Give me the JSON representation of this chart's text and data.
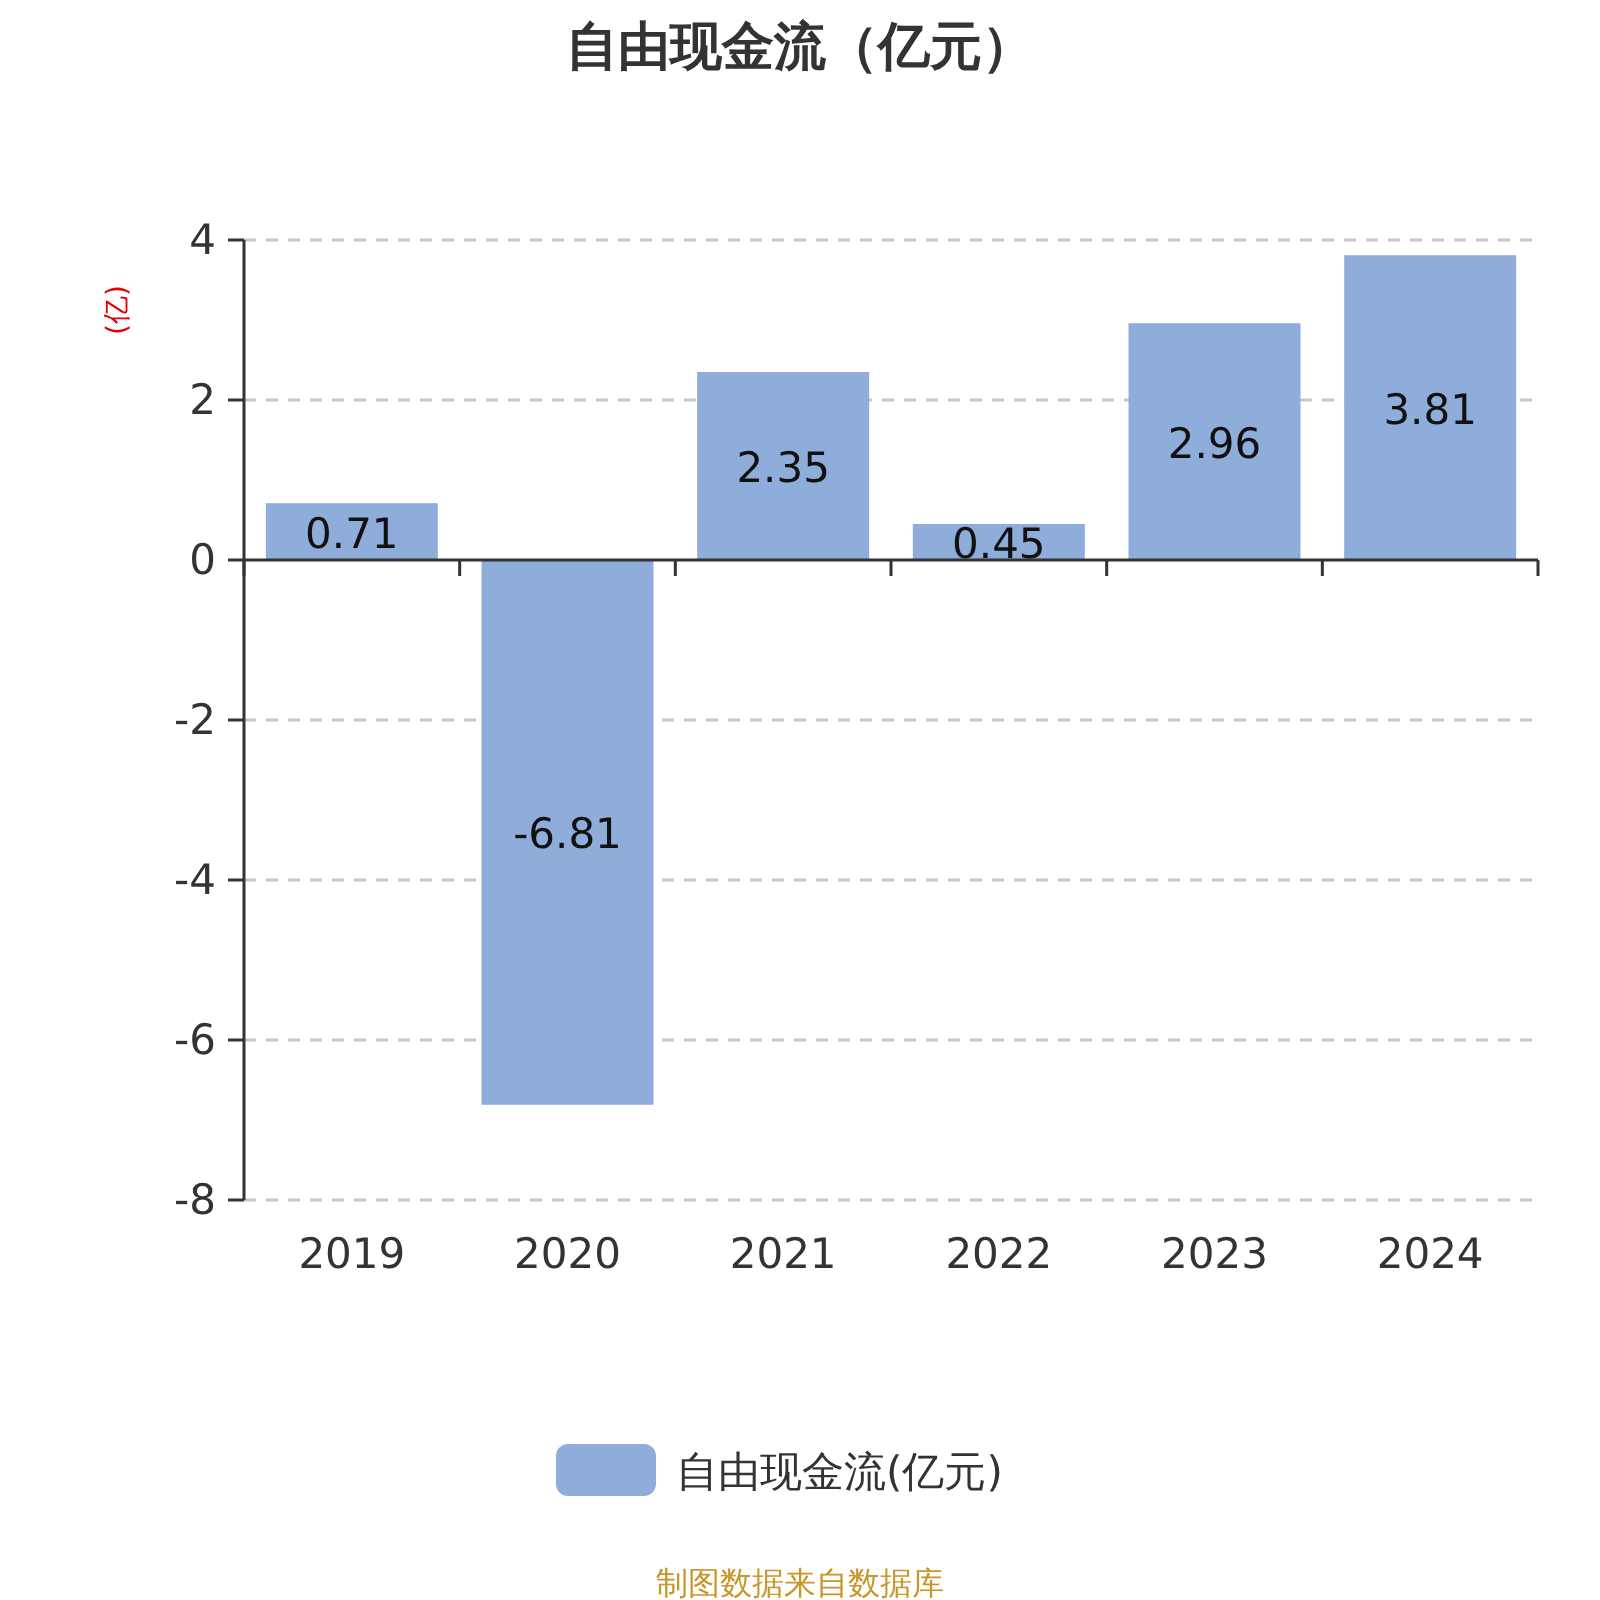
{
  "chart_data": {
    "type": "bar",
    "title": "自由现金流（亿元）",
    "ylabel": "(亿)",
    "categories": [
      "2019",
      "2020",
      "2021",
      "2022",
      "2023",
      "2024"
    ],
    "series": [
      {
        "name": "自由现金流(亿元)",
        "color": "#8eaddb",
        "values": [
          0.71,
          -6.81,
          2.35,
          0.45,
          2.96,
          3.81
        ]
      }
    ],
    "ylim": [
      -8,
      4
    ],
    "yticks": [
      -8,
      -6,
      -4,
      -2,
      0,
      2,
      4
    ],
    "grid": "y",
    "legend": "bottom",
    "data_labels": true,
    "annotations": [
      "制图数据来自数据库"
    ]
  }
}
